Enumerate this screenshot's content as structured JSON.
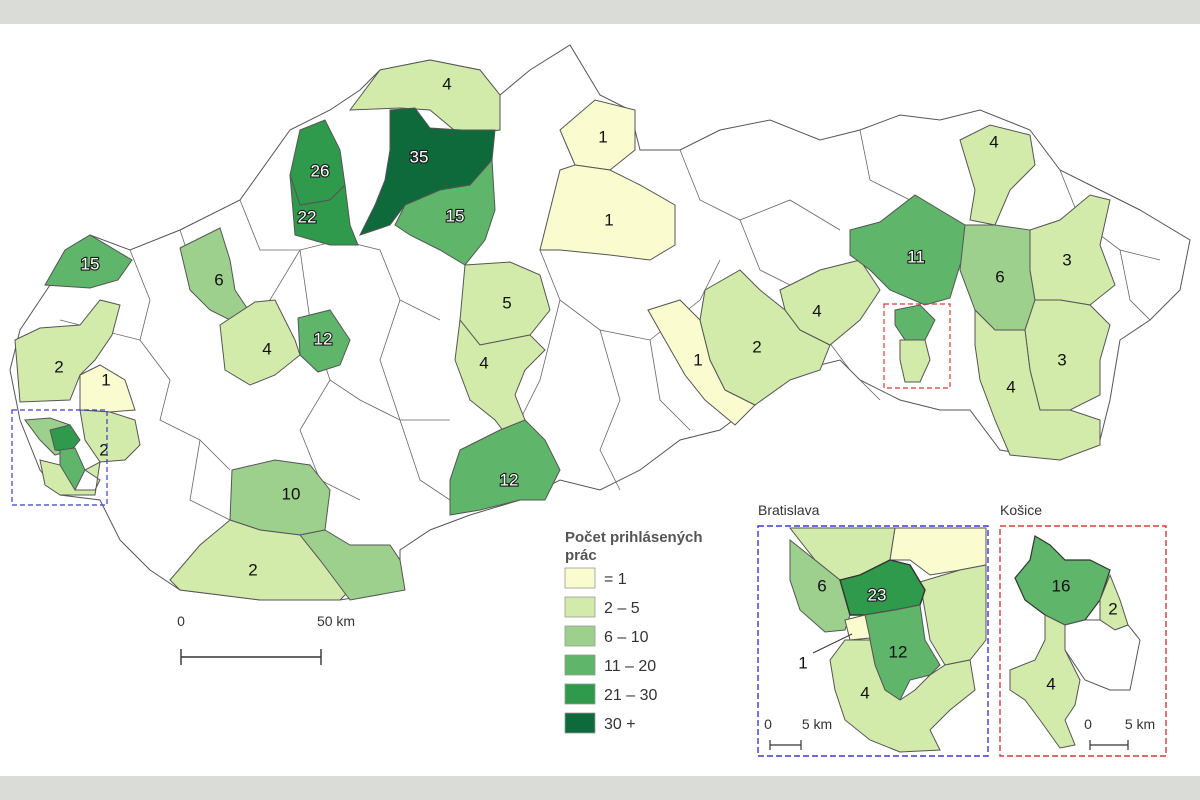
{
  "colors": {
    "c1": "#fbfbd0",
    "c2": "#d3ebaa",
    "c3": "#9dd08c",
    "c4": "#5fb56a",
    "c5": "#2f9a4c",
    "c6": "#0e6a3a",
    "none": "#ffffff",
    "border": "#555555",
    "bratislava_frame": "#3b3bd6",
    "kosice_frame": "#d63b3b"
  },
  "legend": {
    "title_line1": "Počet prihlásených",
    "title_line2": "prác",
    "items": [
      {
        "label": "= 1",
        "color_key": "c1"
      },
      {
        "label": "2 – 5",
        "color_key": "c2"
      },
      {
        "label": "6 – 10",
        "color_key": "c3"
      },
      {
        "label": "11 – 20",
        "color_key": "c4"
      },
      {
        "label": "21 – 30",
        "color_key": "c5"
      },
      {
        "label": "30 +",
        "color_key": "c6"
      }
    ]
  },
  "scale_main": {
    "start": "0",
    "end": "50 km"
  },
  "inset_bratislava": {
    "title": "Bratislava",
    "scale_start": "0",
    "scale_end": "5 km",
    "values": {
      "a": "6",
      "b": "23",
      "c": "12",
      "d": "4",
      "e": "1"
    }
  },
  "inset_kosice": {
    "title": "Košice",
    "scale_start": "0",
    "scale_end": "5 km",
    "values": {
      "a": "16",
      "b": "2",
      "c": "4"
    }
  },
  "districts": {
    "d35": "35",
    "d26": "26",
    "d22": "22",
    "d15a": "15",
    "d4top": "4",
    "d1a": "1",
    "d1b": "1",
    "d15b": "15",
    "d6a": "6",
    "d4a": "4",
    "d12a": "12",
    "d2a": "2",
    "d1c": "1",
    "d2b": "2",
    "d10": "10",
    "d2c": "2",
    "d5": "5",
    "d4b": "4",
    "d12b": "12",
    "d1d": "1",
    "d2d": "2",
    "d4c": "4",
    "d11": "11",
    "d6b": "6",
    "d4d": "4",
    "d3a": "3",
    "d3b": "3",
    "d4e": "4"
  }
}
